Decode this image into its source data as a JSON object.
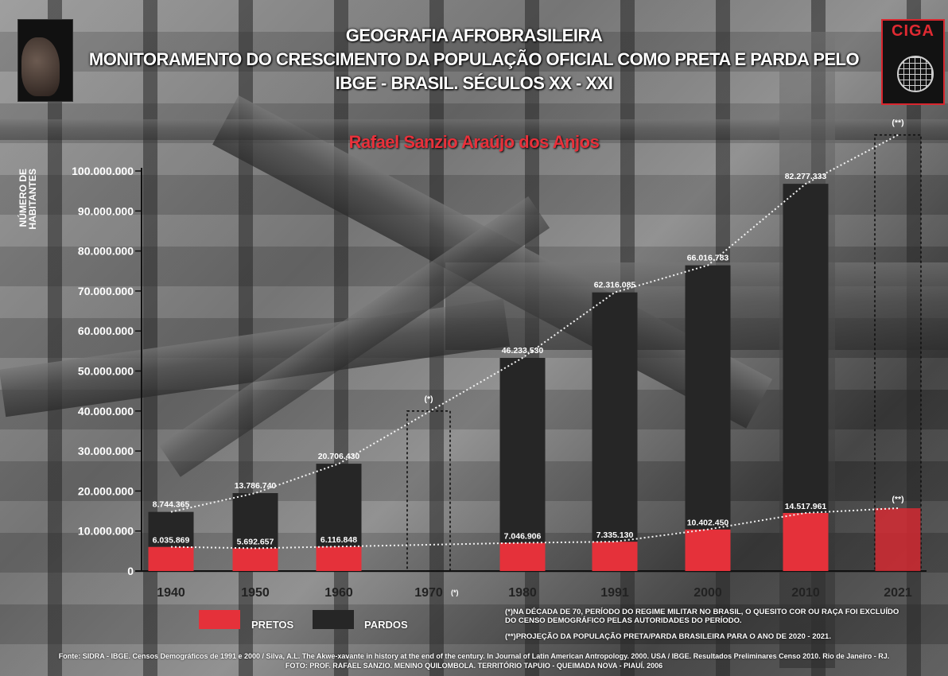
{
  "title_lines": [
    "GEOGRAFIA AFROBRASILEIRA",
    "MONITORAMENTO DO CRESCIMENTO DA POPULAÇÃO OFICIAL COMO PRETA E PARDA PELO",
    "IBGE - BRASIL. SÉCULOS XX - XXI"
  ],
  "author": "Rafael Sanzio Araújo dos Anjos",
  "logo_right": {
    "name": "CIGA"
  },
  "colors": {
    "pretos": "#e5313a",
    "pardos": "#262626",
    "projection_pretos": "#d42a33"
  },
  "chart_data": {
    "type": "bar",
    "stacked": true,
    "ylabel": "NÚMERO DE HABITANTES",
    "ylim": [
      0,
      100000000
    ],
    "yticks": [
      {
        "value": 0,
        "label": "0"
      },
      {
        "value": 10000000,
        "label": "10.000.000"
      },
      {
        "value": 20000000,
        "label": "20.000.000"
      },
      {
        "value": 30000000,
        "label": "30.000.000"
      },
      {
        "value": 40000000,
        "label": "40.000.000"
      },
      {
        "value": 50000000,
        "label": "50.000.000"
      },
      {
        "value": 60000000,
        "label": "60.000.000"
      },
      {
        "value": 70000000,
        "label": "70.000.000"
      },
      {
        "value": 80000000,
        "label": "80.000.000"
      },
      {
        "value": 90000000,
        "label": "90.000.000"
      },
      {
        "value": 100000000,
        "label": "100.000.000"
      }
    ],
    "categories": [
      "1940",
      "1950",
      "1960",
      "1970",
      "1980",
      "1991",
      "2000",
      "2010",
      "2021"
    ],
    "category_suffix": {
      "1970": "(*)"
    },
    "series": [
      {
        "name": "PRETOS",
        "values": [
          6035869,
          5692657,
          6116848,
          null,
          7046906,
          7335130,
          10402450,
          14517961,
          15700000
        ],
        "labels": [
          "6.035.869",
          "5.692.657",
          "6.116.848",
          "",
          "7.046.906",
          "7.335.130",
          "10.402.450",
          "14.517.961",
          ""
        ]
      },
      {
        "name": "PARDOS",
        "values": [
          8744365,
          13786740,
          20706430,
          null,
          46233530,
          62316085,
          66016783,
          82277333,
          null
        ],
        "labels": [
          "8.744.365",
          "13.786.740",
          "20.706.430",
          "",
          "46.233.530",
          "62.316.085",
          "66.016.783",
          "82.277.333",
          ""
        ]
      }
    ],
    "placeholder_boxes": [
      {
        "category": "1970",
        "top_value": 40000000,
        "label": "(*)"
      },
      {
        "category": "2021",
        "top_value": 109000000,
        "label": "(**)"
      }
    ],
    "projection_label_low": "(**)",
    "legend": {
      "position": "bottom-left",
      "items": [
        "PRETOS",
        "PARDOS"
      ]
    },
    "grid": false
  },
  "notes": {
    "note1": "(*)NA DÉCADA DE 70, PERÍODO DO REGIME MILITAR NO BRASIL, O QUESITO COR OU RAÇA FOI EXCLUÍDO DO CENSO DEMOGRÁFICO PELAS AUTORIDADES DO PERÍODO.",
    "note2": "(**)PROJEÇÃO DA POPULAÇÃO PRETA/PARDA BRASILEIRA PARA O ANO DE 2020 - 2021."
  },
  "source_line1": "Fonte: SIDRA - IBGE. Censos Demográficos de 1991 e 2000 / Silva, A.L. The Akwe-xavante in history at the end of the century. In Journal of Latin American Antropology. 2000. USA / IBGE. Resultados Preliminares Censo 2010. Rio de Janeiro - RJ.",
  "source_line2": "FOTO: PROF. RAFAEL SANZIO. MENINO QUILOMBOLA. TERRITÓRIO TAPUIO - QUEIMADA NOVA - PIAUÍ. 2006"
}
